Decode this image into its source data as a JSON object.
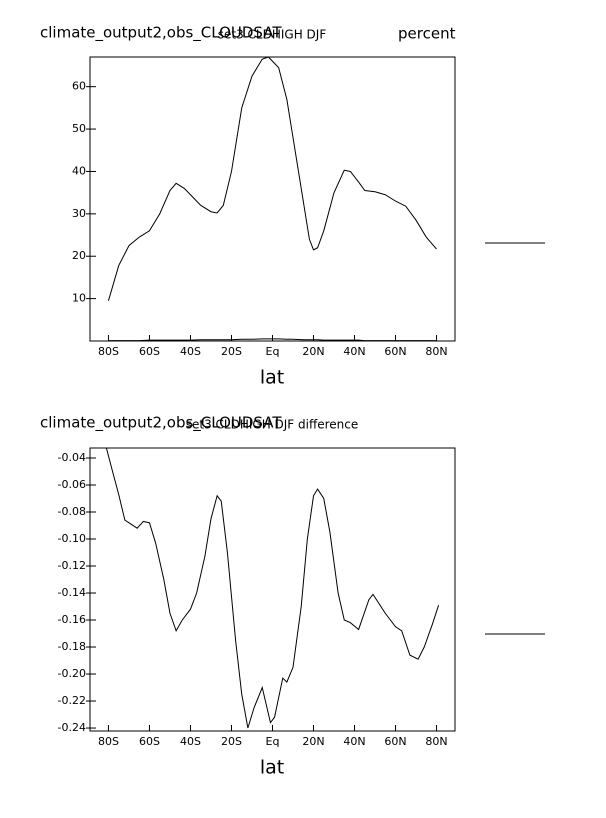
{
  "chart_data": [
    {
      "type": "line",
      "title": "climate_output2,obs_CLOUDSAT",
      "subtitle": "set3 CLDHIGH DJF",
      "units": "percent",
      "x_label": "lat",
      "xlim": [
        -89,
        89
      ],
      "xticks": [
        {
          "value": -80,
          "label": "80S"
        },
        {
          "value": -60,
          "label": "60S"
        },
        {
          "value": -40,
          "label": "40S"
        },
        {
          "value": -20,
          "label": "20S"
        },
        {
          "value": 0,
          "label": "Eq"
        },
        {
          "value": 20,
          "label": "20N"
        },
        {
          "value": 40,
          "label": "40N"
        },
        {
          "value": 60,
          "label": "60N"
        },
        {
          "value": 80,
          "label": "80N"
        }
      ],
      "ylim": [
        0,
        67
      ],
      "yticks": [
        10,
        20,
        30,
        40,
        50,
        60
      ],
      "x": [
        -80,
        -75,
        -70,
        -65,
        -60,
        -55,
        -50,
        -47,
        -43,
        -40,
        -35,
        -30,
        -27,
        -24,
        -20,
        -15,
        -10,
        -5,
        -2,
        0,
        3,
        7,
        10,
        15,
        18,
        20,
        22,
        25,
        30,
        35,
        38,
        42,
        45,
        50,
        55,
        60,
        65,
        70,
        75,
        80
      ],
      "series": [
        {
          "color": "#000000",
          "values": [
            9.5,
            17.8,
            22.5,
            24.5,
            26,
            30,
            35.5,
            37.2,
            36,
            34.5,
            32,
            30.5,
            30.2,
            32,
            40,
            55,
            62.5,
            66.5,
            67,
            66,
            64.5,
            57,
            48,
            33,
            24,
            21.5,
            22,
            26,
            35,
            40.3,
            40,
            37.5,
            35.5,
            35.2,
            34.5,
            33,
            31.8,
            28.5,
            24.5,
            21.7
          ]
        },
        {
          "color": "#000000",
          "values": [
            0.1,
            0.1,
            0.1,
            0.1,
            0.2,
            0.2,
            0.2,
            0.2,
            0.2,
            0.2,
            0.3,
            0.3,
            0.3,
            0.3,
            0.3,
            0.4,
            0.4,
            0.5,
            0.5,
            0.5,
            0.5,
            0.4,
            0.4,
            0.3,
            0.3,
            0.3,
            0.3,
            0.2,
            0.2,
            0.2,
            0.2,
            0.2,
            0.1,
            0.1,
            0.1,
            0.1,
            0.1,
            0.1,
            0.1,
            0.1
          ]
        }
      ]
    },
    {
      "type": "line",
      "title": "climate_output2,obs_CLOUDSAT",
      "subtitle": "set3 CLDHIGH DJF difference",
      "x_label": "lat",
      "xlim": [
        -89,
        89
      ],
      "xticks": [
        {
          "value": -80,
          "label": "80S"
        },
        {
          "value": -60,
          "label": "60S"
        },
        {
          "value": -40,
          "label": "40S"
        },
        {
          "value": -20,
          "label": "20S"
        },
        {
          "value": 0,
          "label": "Eq"
        },
        {
          "value": 20,
          "label": "20N"
        },
        {
          "value": 40,
          "label": "40N"
        },
        {
          "value": 60,
          "label": "60N"
        },
        {
          "value": 80,
          "label": "80N"
        }
      ],
      "ylim": [
        -0.2422,
        -0.0326
      ],
      "yticks": [
        -0.04,
        -0.06,
        -0.08,
        {
          "value": -0.1,
          "label": "-0.10"
        },
        -0.12,
        -0.14,
        -0.16,
        -0.18,
        {
          "value": -0.2,
          "label": "-0.20"
        },
        -0.22,
        -0.24
      ],
      "x": [
        -81,
        -78,
        -75,
        -72,
        -69,
        -66,
        -63,
        -60,
        -57,
        -53,
        -50,
        -47,
        -44,
        -40,
        -37,
        -33,
        -30,
        -27,
        -25,
        -22,
        -18,
        -15,
        -12,
        -9,
        -5,
        -1,
        1,
        5,
        7,
        10,
        14,
        17,
        20,
        22,
        25,
        28,
        32,
        35,
        38,
        42,
        47,
        49,
        55,
        60,
        63,
        67,
        71,
        74,
        78,
        81
      ],
      "series": [
        {
          "color": "#000000",
          "values": [
            -0.0326,
            -0.05,
            -0.067,
            -0.086,
            -0.089,
            -0.092,
            -0.087,
            -0.088,
            -0.103,
            -0.13,
            -0.155,
            -0.168,
            -0.16,
            -0.152,
            -0.14,
            -0.113,
            -0.085,
            -0.068,
            -0.072,
            -0.11,
            -0.175,
            -0.215,
            -0.24,
            -0.225,
            -0.21,
            -0.236,
            -0.232,
            -0.203,
            -0.206,
            -0.195,
            -0.15,
            -0.1,
            -0.068,
            -0.063,
            -0.07,
            -0.095,
            -0.14,
            -0.16,
            -0.162,
            -0.167,
            -0.145,
            -0.141,
            -0.155,
            -0.165,
            -0.168,
            -0.186,
            -0.189,
            -0.18,
            -0.163,
            -0.149
          ]
        }
      ]
    }
  ]
}
